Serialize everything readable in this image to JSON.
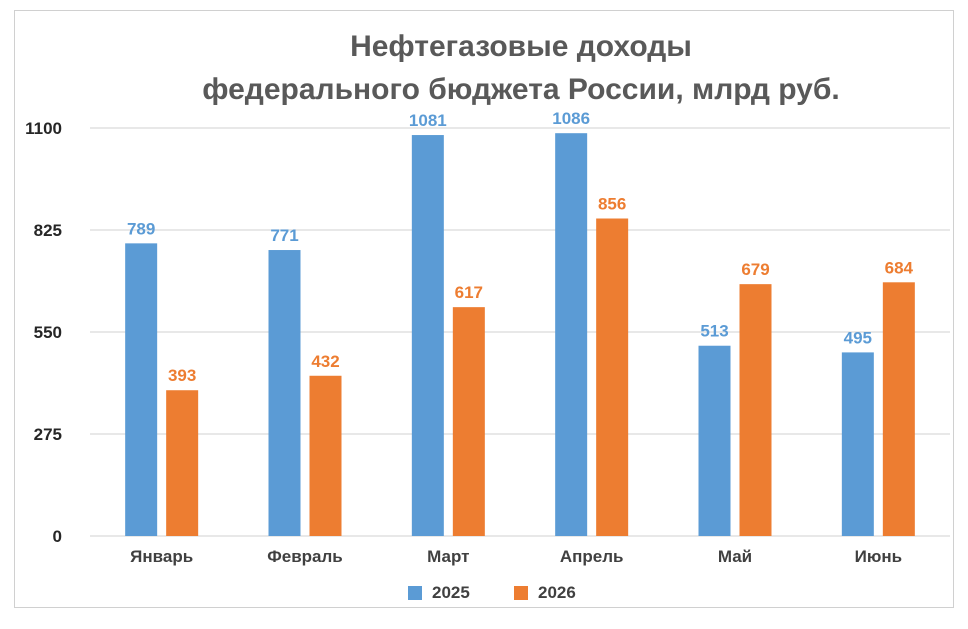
{
  "chart_data": {
    "type": "bar",
    "title_lines": [
      "Нефтегазовые доходы",
      "федерального бюджета России, млрд руб."
    ],
    "categories": [
      "Январь",
      "Февраль",
      "Март",
      "Апрель",
      "Май",
      "Июнь"
    ],
    "series": [
      {
        "name": "2025",
        "color": "#5B9BD5",
        "values": [
          789,
          771,
          1081,
          1086,
          513,
          495
        ]
      },
      {
        "name": "2026",
        "color": "#ED7D31",
        "values": [
          393,
          432,
          617,
          856,
          679,
          684
        ]
      }
    ],
    "yticks": [
      0,
      275,
      550,
      825,
      1100
    ],
    "ylim": [
      0,
      1100
    ],
    "grid": true,
    "legend_position": "bottom",
    "xlabel": "",
    "ylabel": ""
  }
}
